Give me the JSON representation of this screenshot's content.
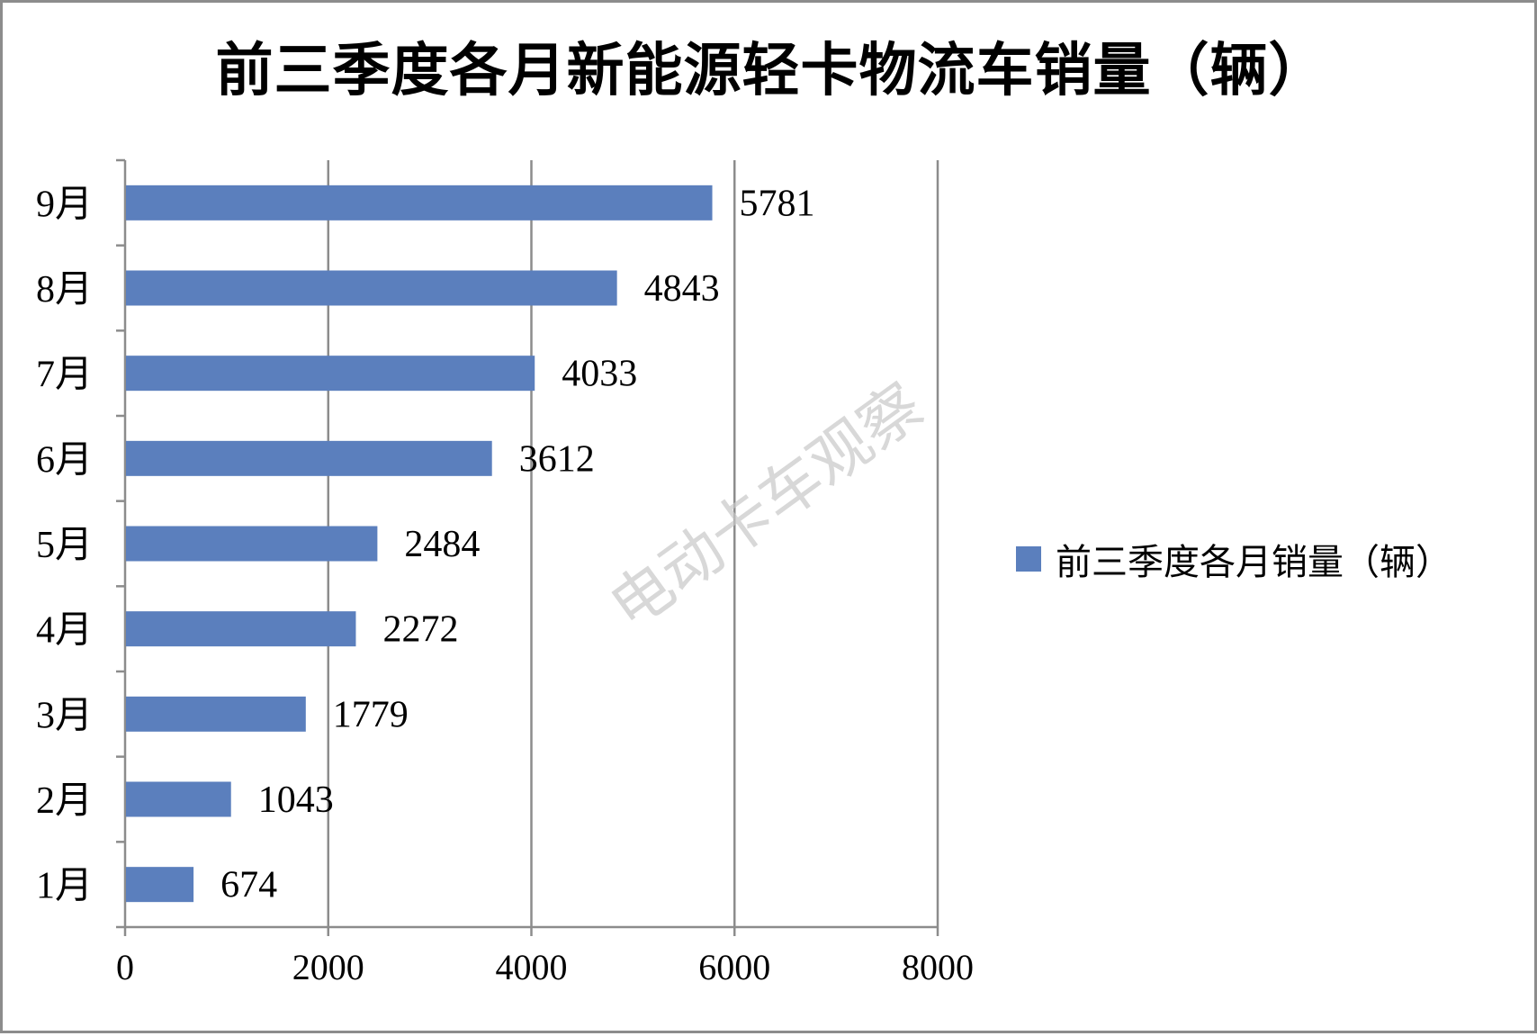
{
  "chart_data": {
    "type": "bar",
    "orientation": "horizontal",
    "title": "前三季度各月新能源轻卡物流车销量（辆）",
    "categories": [
      "1月",
      "2月",
      "3月",
      "4月",
      "5月",
      "6月",
      "7月",
      "8月",
      "9月"
    ],
    "series": [
      {
        "name": "前三季度各月销量（辆）",
        "color": "#5b7fbd",
        "values": [
          674,
          1043,
          1779,
          2272,
          2484,
          3612,
          4033,
          4843,
          5781
        ]
      }
    ],
    "xlim": [
      0,
      8000
    ],
    "xticks": [
      0,
      2000,
      4000,
      6000,
      8000
    ],
    "grid": "vertical",
    "legend_position": "right",
    "data_labels": true
  },
  "watermark": "电动卡车观察"
}
